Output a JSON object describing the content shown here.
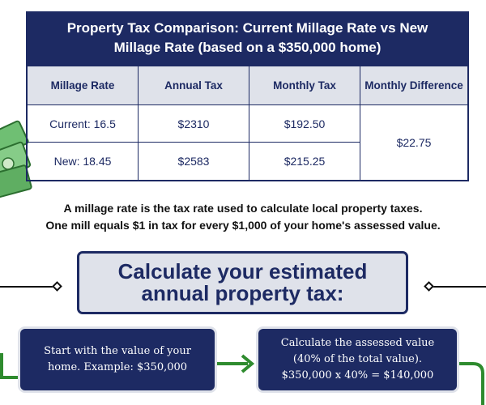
{
  "table": {
    "title": "Property Tax Comparison: Current Millage Rate vs New Millage Rate (based on a $350,000 home)",
    "headers": [
      "Millage Rate",
      "Annual Tax",
      "Monthly Tax",
      "Monthly Difference"
    ],
    "rows": [
      [
        "Current: 16.5",
        "$2310",
        "$192.50"
      ],
      [
        "New: 18.45",
        "$2583",
        "$215.25"
      ]
    ],
    "monthly_difference": "$22.75"
  },
  "explanation": {
    "line1": "A millage rate is the tax rate used to calculate local property taxes.",
    "line2": "One mill equals $1 in tax for every $1,000 of your home's assessed value."
  },
  "calculate": {
    "line1": "Calculate your estimated",
    "line2": "annual property tax:"
  },
  "steps": [
    {
      "line1": "Start with the value of your",
      "line2": "home. Example: $350,000"
    },
    {
      "line1": "Calculate the assessed value",
      "line2": "(40% of the total value).",
      "line3": "$350,000 x 40% = $140,000"
    }
  ],
  "colors": {
    "navy": "#1d2a63",
    "light": "#dfe2ea",
    "green": "#2e8b2e"
  }
}
